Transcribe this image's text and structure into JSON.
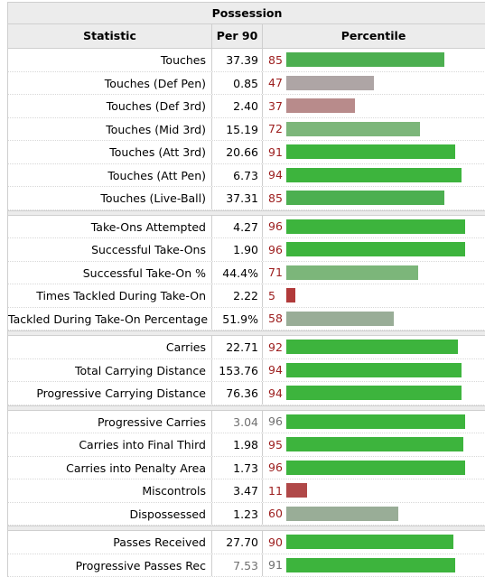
{
  "table": {
    "title": "Possession",
    "headers": [
      "Statistic",
      "Per 90",
      "Percentile"
    ],
    "groups": [
      [
        {
          "stat": "Touches",
          "value": "37.39",
          "pct": 85,
          "color": "#4caf50"
        },
        {
          "stat": "Touches (Def Pen)",
          "value": "0.85",
          "pct": 47,
          "color": "#aea5a5"
        },
        {
          "stat": "Touches (Def 3rd)",
          "value": "2.40",
          "pct": 37,
          "color": "#b88b8b"
        },
        {
          "stat": "Touches (Mid 3rd)",
          "value": "15.19",
          "pct": 72,
          "color": "#7cb67a"
        },
        {
          "stat": "Touches (Att 3rd)",
          "value": "20.66",
          "pct": 91,
          "color": "#3db43d"
        },
        {
          "stat": "Touches (Att Pen)",
          "value": "6.73",
          "pct": 94,
          "color": "#3db43d"
        },
        {
          "stat": "Touches (Live-Ball)",
          "value": "37.31",
          "pct": 85,
          "color": "#4caf50"
        }
      ],
      [
        {
          "stat": "Take-Ons Attempted",
          "value": "4.27",
          "pct": 96,
          "color": "#3db43d"
        },
        {
          "stat": "Successful Take-Ons",
          "value": "1.90",
          "pct": 96,
          "color": "#3db43d"
        },
        {
          "stat": "Successful Take-On %",
          "value": "44.4%",
          "pct": 71,
          "color": "#7cb67a"
        },
        {
          "stat": "Times Tackled During Take-On",
          "value": "2.22",
          "pct": 5,
          "color": "#b13a3a"
        },
        {
          "stat": "Tackled During Take-On Percentage",
          "value": "51.9%",
          "pct": 58,
          "color": "#99ad97"
        }
      ],
      [
        {
          "stat": "Carries",
          "value": "22.71",
          "pct": 92,
          "color": "#3db43d"
        },
        {
          "stat": "Total Carrying Distance",
          "value": "153.76",
          "pct": 94,
          "color": "#3db43d"
        },
        {
          "stat": "Progressive Carrying Distance",
          "value": "76.36",
          "pct": 94,
          "color": "#3db43d"
        }
      ],
      [
        {
          "stat": "Progressive Carries",
          "value": "3.04",
          "pct": 96,
          "color": "#3db43d",
          "gray": true
        },
        {
          "stat": "Carries into Final Third",
          "value": "1.98",
          "pct": 95,
          "color": "#3db43d"
        },
        {
          "stat": "Carries into Penalty Area",
          "value": "1.73",
          "pct": 96,
          "color": "#3db43d"
        },
        {
          "stat": "Miscontrols",
          "value": "3.47",
          "pct": 11,
          "color": "#b04848"
        },
        {
          "stat": "Dispossessed",
          "value": "1.23",
          "pct": 60,
          "color": "#99ad97"
        }
      ],
      [
        {
          "stat": "Passes Received",
          "value": "27.70",
          "pct": 90,
          "color": "#3db43d"
        },
        {
          "stat": "Progressive Passes Rec",
          "value": "7.53",
          "pct": 91,
          "color": "#3db43d",
          "gray": true
        }
      ]
    ]
  }
}
